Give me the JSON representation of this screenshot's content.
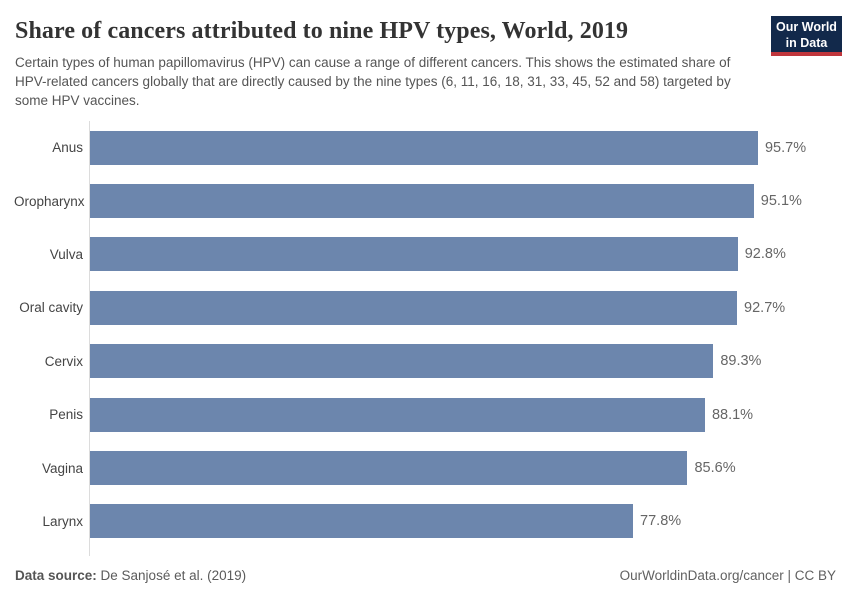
{
  "header": {
    "title": "Share of cancers attributed to nine HPV types, World, 2019",
    "subtitle": "Certain types of human papillomavirus (HPV) can cause a range of different cancers. This shows the estimated share of HPV-related cancers globally that are directly caused by the nine types (6, 11, 16, 18, 31, 33, 45, 52 and 58) targeted by some HPV vaccines.",
    "logo": {
      "line1": "Our World",
      "line2": "in Data"
    }
  },
  "chart_data": {
    "type": "bar",
    "orientation": "horizontal",
    "title": "Share of cancers attributed to nine HPV types, World, 2019",
    "categories": [
      "Anus",
      "Oropharynx",
      "Vulva",
      "Oral cavity",
      "Cervix",
      "Penis",
      "Vagina",
      "Larynx"
    ],
    "values": [
      95.7,
      95.1,
      92.8,
      92.7,
      89.3,
      88.1,
      85.6,
      77.8
    ],
    "value_labels": [
      "95.7%",
      "95.1%",
      "92.8%",
      "92.7%",
      "89.3%",
      "88.1%",
      "85.6%",
      "77.8%"
    ],
    "xlim": [
      0,
      100
    ],
    "unit": "%",
    "grid": false,
    "legend": "none",
    "bar_color": "#6c86ad"
  },
  "footer": {
    "source_label": "Data source:",
    "source_text": " De Sanjosé et al. (2019)",
    "license_text": "OurWorldinData.org/cancer | CC BY"
  },
  "colors": {
    "bar": "#6c86ad",
    "axis_line": "#dcdcdc",
    "title_text": "#333333",
    "subtitle_text": "#555555",
    "logo_navy": "#12294b",
    "logo_red": "#c0363c"
  }
}
